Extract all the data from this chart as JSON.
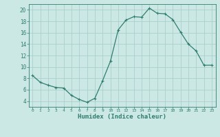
{
  "x": [
    0,
    1,
    2,
    3,
    4,
    5,
    6,
    7,
    8,
    9,
    10,
    11,
    12,
    13,
    14,
    15,
    16,
    17,
    18,
    19,
    20,
    21,
    22,
    23
  ],
  "y": [
    8.5,
    7.3,
    6.8,
    6.4,
    6.3,
    5.0,
    4.3,
    3.8,
    4.5,
    7.6,
    11.0,
    16.5,
    18.2,
    18.8,
    18.7,
    20.3,
    19.4,
    19.3,
    18.3,
    16.1,
    14.0,
    12.8,
    10.3,
    10.3
  ],
  "xlim": [
    -0.5,
    23.5
  ],
  "ylim": [
    3,
    21
  ],
  "yticks": [
    4,
    6,
    8,
    10,
    12,
    14,
    16,
    18,
    20
  ],
  "xticks": [
    0,
    1,
    2,
    3,
    4,
    5,
    6,
    7,
    8,
    9,
    10,
    11,
    12,
    13,
    14,
    15,
    16,
    17,
    18,
    19,
    20,
    21,
    22,
    23
  ],
  "xlabel": "Humidex (Indice chaleur)",
  "line_color": "#2e7d6e",
  "marker": "+",
  "bg_color": "#cce8e4",
  "grid_color": "#aacfcb",
  "axis_color": "#2e7d6e",
  "tick_color": "#2e7d6e",
  "label_color": "#2e7d6e"
}
